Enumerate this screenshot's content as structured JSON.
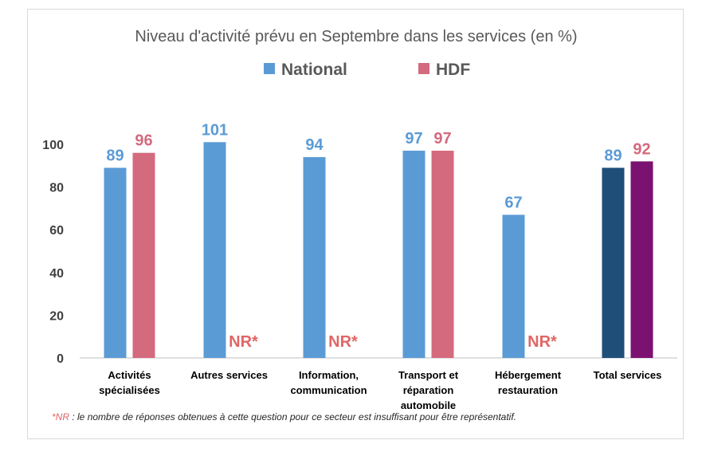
{
  "chart_data": {
    "type": "bar",
    "title": "Niveau d'activité prévu en Septembre dans les services (en %)",
    "categories": [
      [
        "Activités",
        "spécialisées"
      ],
      [
        "Autres services"
      ],
      [
        "Information,",
        "communication"
      ],
      [
        "Transport et",
        "réparation",
        "automobile"
      ],
      [
        "Hébergement",
        "restauration"
      ],
      [
        "Total services"
      ]
    ],
    "series": [
      {
        "name": "National",
        "color": "#5b9bd5",
        "values": [
          89,
          101,
          94,
          97,
          67,
          89
        ]
      },
      {
        "name": "HDF",
        "color": "#d46a7e",
        "values": [
          96,
          null,
          null,
          97,
          null,
          92
        ]
      }
    ],
    "highlight_colors": {
      "National": "#1f4e79",
      "HDF": "#7b1170"
    },
    "highlight_index": 5,
    "missing_label": "NR*",
    "missing_color": "#e06666",
    "ylim": [
      0,
      100
    ],
    "yticks": [
      0,
      20,
      40,
      60,
      80,
      100
    ],
    "legend_position": "top-center",
    "grid": false
  },
  "footnote": {
    "prefix": "*NR",
    "text": " : le nombre de réponses obtenues à cette question pour ce secteur est insuffisant pour être représentatif."
  }
}
